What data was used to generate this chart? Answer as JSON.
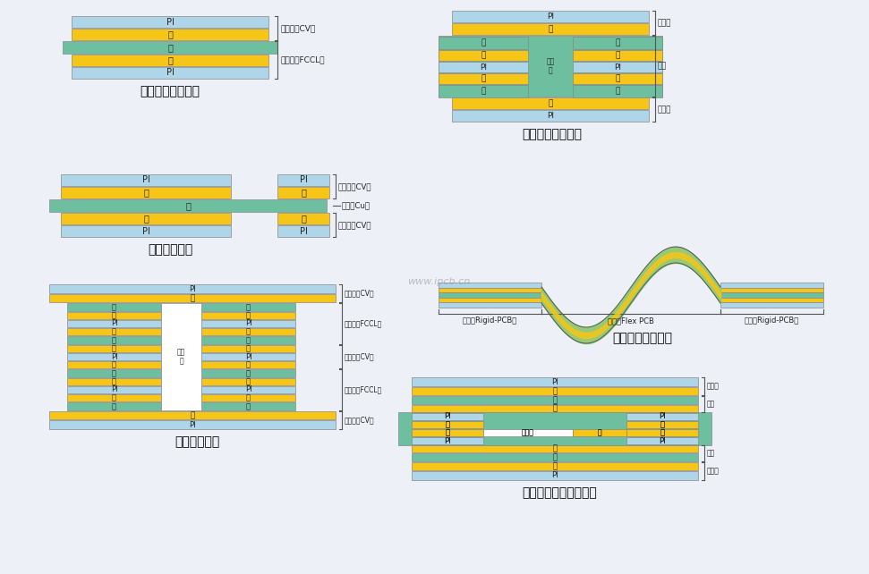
{
  "bg_color": "#eef0f8",
  "colors": {
    "PI": "#aed6e8",
    "glue": "#f5c518",
    "copper": "#6dbfa0",
    "white": "#ffffff",
    "border": "#888888",
    "text": "#222222",
    "brace": "#555555"
  },
  "labels": {
    "single_title": "普通单面板结构图",
    "hollow_title": "镂空板结构图",
    "double_title": "普通双面板结构图",
    "rigidflex_title": "软硬结合板结构图",
    "multi_title": "多层板结构图",
    "substrate_title": "基板生成双面板结构图",
    "PI": "PI",
    "glue": "胶",
    "copper": "铜",
    "prot_cv": "保护膜（CV）",
    "fccl": "覆铜板（FCCL）",
    "prot": "保护膜",
    "base": "基材",
    "via": "孔化\n孔",
    "cu_foil": "铜箔（Cu）",
    "rigid_left": "硬板（Rigid-PCB）",
    "flex_mid": "软板（Flex PCB",
    "rigid_right": "硬板（Rigid-PCB）",
    "no_glue": "无胶区",
    "watermark": "www.ipcb.cn"
  }
}
